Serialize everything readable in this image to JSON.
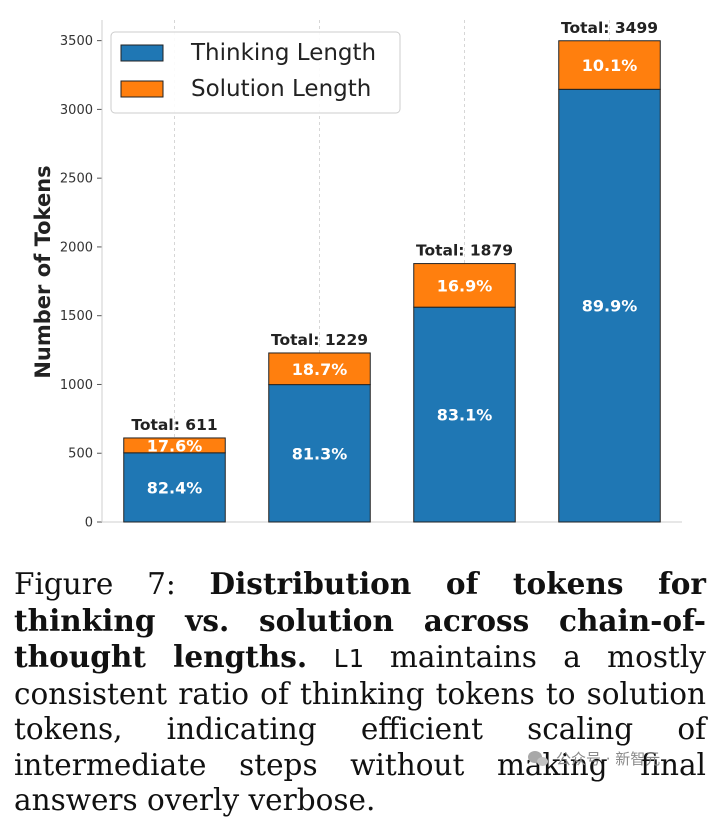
{
  "chart_data": {
    "type": "bar",
    "stacked": true,
    "categories": [
      "",
      "",
      "",
      ""
    ],
    "series": [
      {
        "name": "Thinking Length",
        "color": "#1f77b4",
        "values": [
          503,
          999,
          1562,
          3146
        ],
        "labels": [
          "82.4%",
          "81.3%",
          "83.1%",
          "89.9%"
        ]
      },
      {
        "name": "Solution Length",
        "color": "#ff7f0e",
        "values": [
          108,
          230,
          317,
          353
        ],
        "labels": [
          "17.6%",
          "18.7%",
          "16.9%",
          "10.1%"
        ]
      }
    ],
    "totals": [
      "Total: 611",
      "Total: 1229",
      "Total: 1879",
      "Total: 3499"
    ],
    "ylabel": "Number of Tokens",
    "xlabel": "",
    "ylim": [
      0,
      3650
    ],
    "yticks": [
      0,
      500,
      1000,
      1500,
      2000,
      2500,
      3000,
      3500
    ],
    "grid": true,
    "legend": "top-left"
  },
  "caption": {
    "figure_label": "Figure 7:",
    "title": "Distribution of tokens for thinking vs. solution across chain-of-thought lengths.",
    "model_name": "L1",
    "body": "maintains a mostly consistent ratio of thinking tokens to solution tokens, indicating efficient scaling of intermediate steps without making final answers overly verbose."
  },
  "watermark": {
    "text": "公众号 · 新智元",
    "icon": "wechat-icon"
  }
}
